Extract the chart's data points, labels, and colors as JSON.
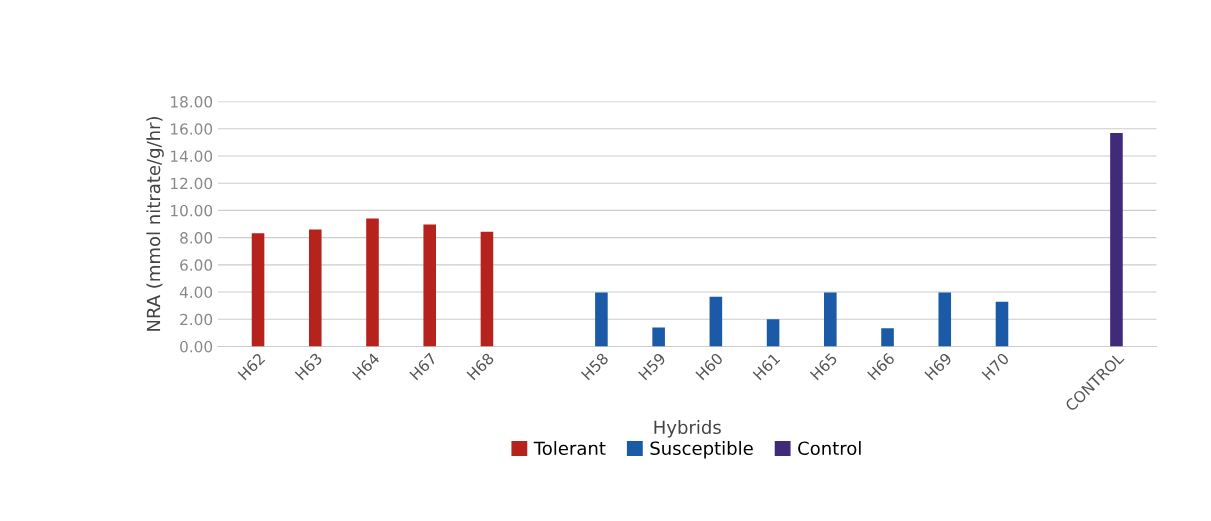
{
  "chart_data": {
    "type": "bar",
    "xlabel": "Hybrids",
    "ylabel": "NRA (mmol nitrate/g/hr)",
    "categories": [
      "H62",
      "H63",
      "H64",
      "H67",
      "H68",
      null,
      "H58",
      "H59",
      "H60",
      "H61",
      "H65",
      "H66",
      "H69",
      "H70",
      null,
      "CONTROL"
    ],
    "series": [
      {
        "name": "Tolerant",
        "color": "#b5231c",
        "values": [
          8.33,
          8.59,
          9.41,
          8.97,
          8.44,
          null,
          null,
          null,
          null,
          null,
          null,
          null,
          null,
          null,
          null,
          null
        ]
      },
      {
        "name": "Susceptible",
        "color": "#1a5aa6",
        "values": [
          null,
          null,
          null,
          null,
          null,
          null,
          3.97,
          1.4,
          3.65,
          2.0,
          3.97,
          1.34,
          3.97,
          3.28,
          null,
          null
        ]
      },
      {
        "name": "Control",
        "color": "#3f2b7a",
        "values": [
          null,
          null,
          null,
          null,
          null,
          null,
          null,
          null,
          null,
          null,
          null,
          null,
          null,
          null,
          null,
          15.7
        ]
      }
    ],
    "ylim": [
      0,
      18
    ],
    "yticks": [
      {
        "value": 0,
        "label": "0.00"
      },
      {
        "value": 2,
        "label": "2.00"
      },
      {
        "value": 4,
        "label": "4.00"
      },
      {
        "value": 6,
        "label": "6.00"
      },
      {
        "value": 8,
        "label": "8.00"
      },
      {
        "value": 10,
        "label": "10.00"
      },
      {
        "value": 12,
        "label": "12.00"
      },
      {
        "value": 14,
        "label": "14.00"
      },
      {
        "value": 16,
        "label": "16.00"
      },
      {
        "value": 18,
        "label": "18.00"
      }
    ],
    "grid": "y",
    "legend": "bottom"
  }
}
